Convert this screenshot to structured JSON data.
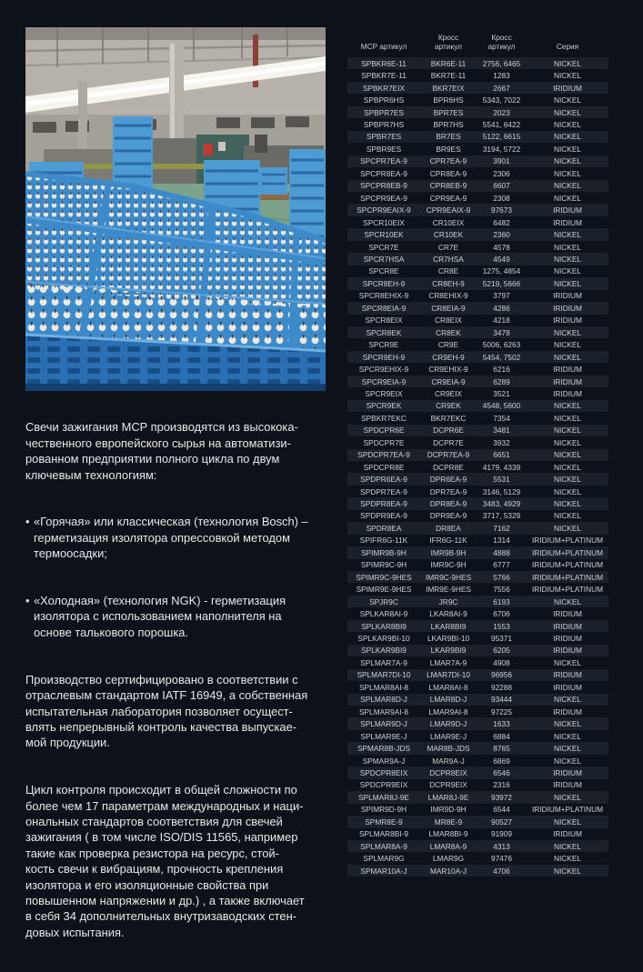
{
  "page": {
    "background": "#0d1119",
    "stripe_color": "#1b212b",
    "text_color": "#e7e8ea",
    "table_text_color": "#ccd1d7",
    "photo_blue": "#3d8aca",
    "floor_green": "#7ca38a"
  },
  "photo": {
    "description": "Factory floor with stacks of blue crates of white spark plug insulators on wooden pallets"
  },
  "intro": {
    "bullet_marker": "•",
    "paragraphs": {
      "p1": "Свечи зажигания MCP производятся из высокока-\nчественного европейского сырья на автоматизи-\nрованном предприятии полного цикла по двум\nключевым технологиям:",
      "p2": "Производство сертифицировано в соответствии с\nотраслевым стандартом IATF 16949, а собственная\nиспытательная лаборатория позволяет осущест-\nвлять непрерывный контроль качества выпускае-\nмой продукции.",
      "p3": "Цикл контроля происходит в общей сложности по\nболее чем 17 параметрам международных и наци-\nональных стандартов соответствия для свечей\nзажигания ( в том числе ISO/DIS 11565, например\nтакие как проверка резистора на ресурс, стой-\nкость свечи к вибрациям, прочность крепления\nизолятора и его изоляционные свойства при\nповышенном напряжении и др.) , а также включает\nв себя 34 дополнительных внутризаводских стен-\nдовых испытания."
    },
    "bullets": [
      "«Горячая» или классическая (технология Bosch) –\nгерметизация изолятора опрессовкой методом\nтермоосадки;",
      "«Холодная» (технология NGK) - герметизация\nизолятора с использованием наполнителя на\nоснове талькового порошка."
    ]
  },
  "table": {
    "headers": [
      "MCP артикул",
      "Кросс\nартикул",
      "Кросс\nартикул",
      "Серия"
    ],
    "rows": [
      [
        "SPBKR6E-11",
        "BKR6E-11",
        "2756, 6465",
        "NICKEL"
      ],
      [
        "SPBKR7E-11",
        "BKR7E-11",
        "1283",
        "NICKEL"
      ],
      [
        "SPBKR7EIX",
        "BKR7EIX",
        "2667",
        "IRIDIUM"
      ],
      [
        "SPBPR6HS",
        "BPR6HS",
        "5343, 7022",
        "NICKEL"
      ],
      [
        "SPBPR7ES",
        "BPR7ES",
        "2023",
        "NICKEL"
      ],
      [
        "SPBPR7HS",
        "BPR7HS",
        "5541, 6422",
        "NICKEL"
      ],
      [
        "SPBR7ES",
        "BR7ES",
        "5122, 6615",
        "NICKEL"
      ],
      [
        "SPBR9ES",
        "BR9ES",
        "3194, 5722",
        "NICKEL"
      ],
      [
        "SPCPR7EA-9",
        "CPR7EA-9",
        "3901",
        "NICKEL"
      ],
      [
        "SPCPR8EA-9",
        "CPR8EA-9",
        "2306",
        "NICKEL"
      ],
      [
        "SPCPR8EB-9",
        "CPR8EB-9",
        "6607",
        "NICKEL"
      ],
      [
        "SPCPR9EA-9",
        "CPR9EA-9",
        "2308",
        "NICKEL"
      ],
      [
        "SPCPR9EAIX-9",
        "CPR9EAIX-9",
        "97673",
        "IRIDIUM"
      ],
      [
        "SPCR10EIX",
        "CR10EIX",
        "6482",
        "IRIDIUM"
      ],
      [
        "SPCR10EK",
        "CR10EK",
        "2360",
        "NICKEL"
      ],
      [
        "SPCR7E",
        "CR7E",
        "4578",
        "NICKEL"
      ],
      [
        "SPCR7HSA",
        "CR7HSA",
        "4549",
        "NICKEL"
      ],
      [
        "SPCR8E",
        "CR8E",
        "1275, 4854",
        "NICKEL"
      ],
      [
        "SPCR8EH-9",
        "CR8EH-9",
        "5219, 5666",
        "NICKEL"
      ],
      [
        "SPCR8EHIX-9",
        "CR8EHIX-9",
        "3797",
        "IRIDIUM"
      ],
      [
        "SPCR8EIA-9",
        "CR8EIA-9",
        "4286",
        "IRIDIUM"
      ],
      [
        "SPCR8EIX",
        "CR8EIX",
        "4218",
        "IRIDIUM"
      ],
      [
        "SPCR8EK",
        "CR8EK",
        "3478",
        "NICKEL"
      ],
      [
        "SPCR9E",
        "CR9E",
        "5006, 6263",
        "NICKEL"
      ],
      [
        "SPCR9EH-9",
        "CR9EH-9",
        "5454, 7502",
        "NICKEL"
      ],
      [
        "SPCR9EHIX-9",
        "CR9EHIX-9",
        "6216",
        "IRIDIUM"
      ],
      [
        "SPCR9EIA-9",
        "CR9EIA-9",
        "6289",
        "IRIDIUM"
      ],
      [
        "SPCR9EIX",
        "CR9EIX",
        "3521",
        "IRIDIUM"
      ],
      [
        "SPCR9EK",
        "CR9EK",
        "4548, 5600",
        "NICKEL"
      ],
      [
        "SPBKR7EKC",
        "BKR7EKC",
        "7354",
        "NICKEL"
      ],
      [
        "SPDCPR6E",
        "DCPR6E",
        "3481",
        "NICKEL"
      ],
      [
        "SPDCPR7E",
        "DCPR7E",
        "3932",
        "NICKEL"
      ],
      [
        "SPDCPR7EA-9",
        "DCPR7EA-9",
        "6651",
        "NICKEL"
      ],
      [
        "SPDCPR8E",
        "DCPR8E",
        "4179, 4339",
        "NICKEL"
      ],
      [
        "SPDPR6EA-9",
        "DPR6EA-9",
        "5531",
        "NICKEL"
      ],
      [
        "SPDPR7EA-9",
        "DPR7EA-9",
        "3146, 5129",
        "NICKEL"
      ],
      [
        "SPDPR8EA-9",
        "DPR8EA-9",
        "3483, 4929",
        "NICKEL"
      ],
      [
        "SPDPR9EA-9",
        "DPR9EA-9",
        "3717, 5329",
        "NICKEL"
      ],
      [
        "SPDR8EA",
        "DR8EA",
        "7162",
        "NICKEL"
      ],
      [
        "SPIFR6G-11K",
        "IFR6G-11K",
        "1314",
        "IRIDIUM+PLATINUM"
      ],
      [
        "SPIMR9B-9H",
        "IMR9B-9H",
        "4888",
        "IRIDIUM+PLATINUM"
      ],
      [
        "SPIMR9C-9H",
        "IMR9C-9H",
        "6777",
        "IRIDIUM+PLATINUM"
      ],
      [
        "SPIMR9C-9HES",
        "IMR9C-9HES",
        "5766",
        "IRIDIUM+PLATINUM"
      ],
      [
        "SPIMR9E-9HES",
        "IMR9E-9HES",
        "7556",
        "IRIDIUM+PLATINUM"
      ],
      [
        "SPJR9C",
        "JR9C",
        "6193",
        "NICKEL"
      ],
      [
        "SPLKAR8AI-9",
        "LKAR8AI-9",
        "6706",
        "IRIDIUM"
      ],
      [
        "SPLKAR8BI9",
        "LKAR8BI9",
        "1553",
        "IRIDIUM"
      ],
      [
        "SPLKAR9BI-10",
        "LKAR9BI-10",
        "95371",
        "IRIDIUM"
      ],
      [
        "SPLKAR9BI9",
        "LKAR9BI9",
        "6205",
        "IRIDIUM"
      ],
      [
        "SPLMAR7A-9",
        "LMAR7A-9",
        "4908",
        "NICKEL"
      ],
      [
        "SPLMAR7DI-10",
        "LMAR7DI-10",
        "96956",
        "IRIDIUM"
      ],
      [
        "SPLMAR8AI-8",
        "LMAR8AI-8",
        "92288",
        "IRIDIUM"
      ],
      [
        "SPLMAR8D-J",
        "LMAR8D-J",
        "93444",
        "NICKEL"
      ],
      [
        "SPLMAR9AI-8",
        "LMAR9AI-8",
        "97225",
        "IRIDIUM"
      ],
      [
        "SPLMAR9D-J",
        "LMAR9D-J",
        "1633",
        "NICKEL"
      ],
      [
        "SPLMAR9E-J",
        "LMAR9E-J",
        "6884",
        "NICKEL"
      ],
      [
        "SPMAR8B-JDS",
        "MAR8B-JDS",
        "8765",
        "NICKEL"
      ],
      [
        "SPMAR9A-J",
        "MAR9A-J",
        "6869",
        "NICKEL"
      ],
      [
        "SPDCPR8EIX",
        "DCPR8EIX",
        "6546",
        "IRIDIUM"
      ],
      [
        "SPDCPR9EIX",
        "DCPR9EIX",
        "2316",
        "IRIDIUM"
      ],
      [
        "SPLMAR8J-9E",
        "LMAR8J-9E",
        "93972",
        "NICKEL"
      ],
      [
        "SPIMR9D-9H",
        "IMR9D-9H",
        "6544",
        "IRIDIUM+PLATINUM"
      ],
      [
        "SPMR8E-9",
        "MR8E-9",
        "90527",
        "NICKEL"
      ],
      [
        "SPLMAR8BI-9",
        "LMAR8BI-9",
        "91909",
        "IRIDIUM"
      ],
      [
        "SPLMAR8A-9",
        "LMAR8A-9",
        "4313",
        "NICKEL"
      ],
      [
        "SPLMAR9G",
        "LMAR9G",
        "97476",
        "NICKEL"
      ],
      [
        "SPMAR10A-J",
        "MAR10A-J",
        "4706",
        "NICKEL"
      ]
    ]
  }
}
